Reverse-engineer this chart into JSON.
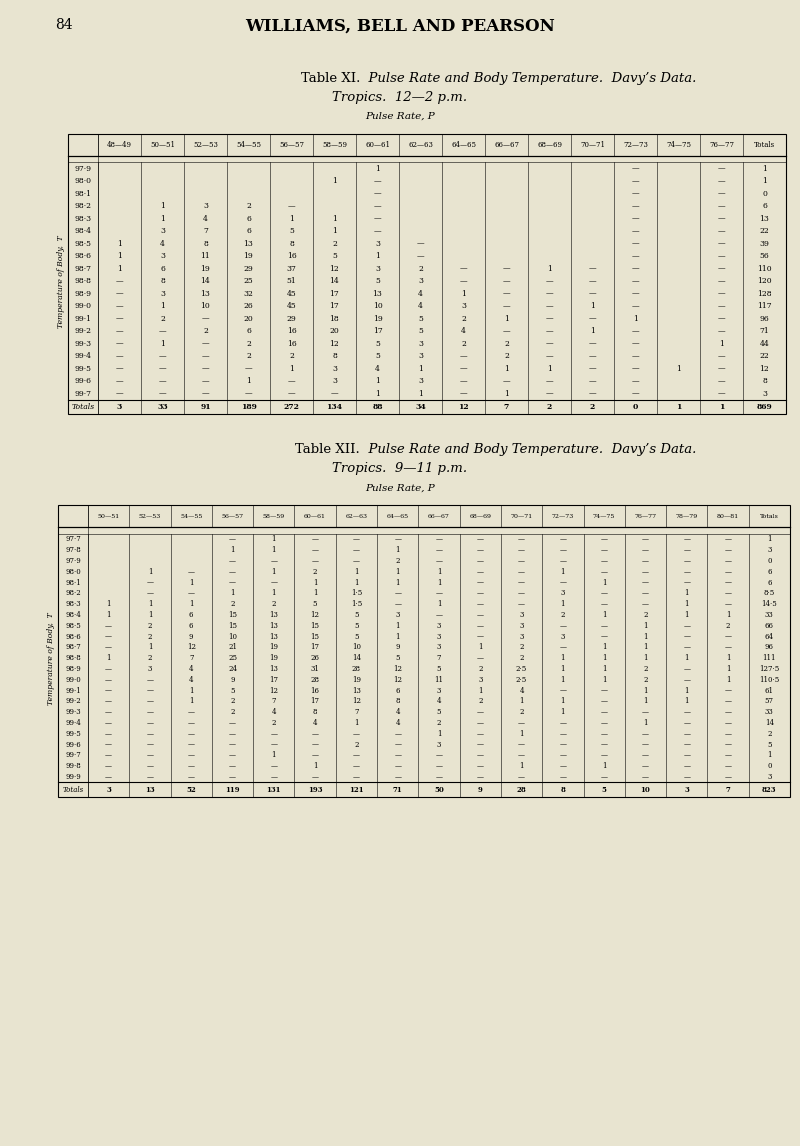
{
  "page_number": "84",
  "page_header": "WILLIAMS, BELL AND PEARSON",
  "bg_color": "#e8e4d0",
  "table1": {
    "title_line1_normal": "Table XI.",
    "title_line1_italic": "  Pulse Rate and Body Temperature.  Davy’s Data.",
    "title_line2_italic": "Tropics.  12—2 p.m.",
    "pulse_label": "Pulse Rate, P",
    "col_headers": [
      "48—49",
      "50—51",
      "52—53",
      "54—55",
      "56—57",
      "58—59",
      "60—61",
      "62—63",
      "64—65",
      "66—67",
      "68—69",
      "70—71",
      "72—73",
      "74—75",
      "76—77",
      "Totals"
    ],
    "row_labels": [
      "97·9",
      "98·0",
      "98·1",
      "98·2",
      "98·3",
      "98·4",
      "98·5",
      "98·6",
      "98·7",
      "98·8",
      "98·9",
      "99·0",
      "99·1",
      "99·2",
      "99·3",
      "99·4",
      "99·5",
      "99·6",
      "99·7"
    ],
    "data": [
      [
        " ",
        " ",
        " ",
        " ",
        " ",
        " ",
        "1",
        " ",
        " ",
        " ",
        " ",
        " ",
        "—",
        " ",
        "—",
        "1"
      ],
      [
        " ",
        " ",
        " ",
        " ",
        " ",
        "1",
        "—",
        " ",
        " ",
        " ",
        " ",
        " ",
        "—",
        " ",
        "—",
        "1"
      ],
      [
        " ",
        " ",
        " ",
        " ",
        " ",
        " ",
        "—",
        " ",
        " ",
        " ",
        " ",
        " ",
        "—",
        " ",
        "—",
        "0"
      ],
      [
        " ",
        "1",
        "3",
        "2",
        "—",
        " ",
        "—",
        " ",
        " ",
        " ",
        " ",
        " ",
        "—",
        " ",
        "—",
        "6"
      ],
      [
        " ",
        "1",
        "4",
        "6",
        "1",
        "1",
        "—",
        " ",
        " ",
        " ",
        " ",
        " ",
        "—",
        " ",
        "—",
        "13"
      ],
      [
        " ",
        "3",
        "7",
        "6",
        "5",
        "1",
        "—",
        " ",
        " ",
        " ",
        " ",
        " ",
        "—",
        " ",
        "—",
        "22"
      ],
      [
        "1",
        "4",
        "8",
        "13",
        "8",
        "2",
        "3",
        "—",
        " ",
        " ",
        " ",
        " ",
        "—",
        " ",
        "—",
        "39"
      ],
      [
        "1",
        "3",
        "11",
        "19",
        "16",
        "5",
        "1",
        "—",
        " ",
        " ",
        " ",
        " ",
        "—",
        " ",
        "—",
        "56"
      ],
      [
        "1",
        "6",
        "19",
        "29",
        "37",
        "12",
        "3",
        "2",
        "—",
        "—",
        "1",
        "—",
        "—",
        " ",
        "—",
        "110"
      ],
      [
        "—",
        "8",
        "14",
        "25",
        "51",
        "14",
        "5",
        "3",
        "—",
        "—",
        "—",
        "—",
        "—",
        " ",
        "—",
        "120"
      ],
      [
        "—",
        "3",
        "13",
        "32",
        "45",
        "17",
        "13",
        "4",
        "1",
        "—",
        "—",
        "—",
        "—",
        " ",
        "—",
        "128"
      ],
      [
        "—",
        "1",
        "10",
        "26",
        "45",
        "17",
        "10",
        "4",
        "3",
        "—",
        "—",
        "1",
        "—",
        " ",
        "—",
        "117"
      ],
      [
        "—",
        "2",
        "—",
        "20",
        "29",
        "18",
        "19",
        "5",
        "2",
        "1",
        "—",
        "—",
        "1",
        " ",
        "—",
        "96"
      ],
      [
        "—",
        "—",
        "2",
        "6",
        "16",
        "20",
        "17",
        "5",
        "4",
        "—",
        "—",
        "1",
        "—",
        " ",
        "—",
        "71"
      ],
      [
        "—",
        "1",
        "—",
        "2",
        "16",
        "12",
        "5",
        "3",
        "2",
        "2",
        "—",
        "—",
        "—",
        " ",
        "1",
        "44"
      ],
      [
        "—",
        "—",
        "—",
        "2",
        "2",
        "8",
        "5",
        "3",
        "—",
        "2",
        "—",
        "—",
        "—",
        " ",
        "—",
        "22"
      ],
      [
        "—",
        "—",
        "—",
        "—",
        "1",
        "3",
        "4",
        "1",
        "—",
        "1",
        "1",
        "—",
        "—",
        "1",
        "—",
        "12"
      ],
      [
        "—",
        "—",
        "—",
        "1",
        "—",
        "3",
        "1",
        "3",
        "—",
        "—",
        "—",
        "—",
        "—",
        " ",
        "—",
        "8"
      ],
      [
        "—",
        "—",
        "—",
        "—",
        "—",
        "—",
        "1",
        "1",
        "—",
        "1",
        "—",
        "—",
        "—",
        " ",
        "—",
        "3"
      ]
    ],
    "totals_row": [
      "3",
      "33",
      "91",
      "189",
      "272",
      "134",
      "88",
      "34",
      "12",
      "7",
      "2",
      "2",
      "0",
      "1",
      "1",
      "869"
    ]
  },
  "table2": {
    "title_line1_normal": "Table XII.",
    "title_line1_italic": "  Pulse Rate and Body Temperature.  Davy’s Data.",
    "title_line2_italic": "Tropics.  9—11 p.m.",
    "pulse_label": "Pulse Rate, P",
    "col_headers": [
      "50—51",
      "52—53",
      "54—55",
      "56—57",
      "58—59",
      "60—61",
      "62—63",
      "64—65",
      "66—67",
      "68—69",
      "70—71",
      "72—73",
      "74—75",
      "76—77",
      "78—79",
      "80—81",
      "Totals"
    ],
    "row_labels": [
      "97·7",
      "97·8",
      "97·9",
      "98·0",
      "98·1",
      "98·2",
      "98·3",
      "98·4",
      "98·5",
      "98·6",
      "98·7",
      "98·8",
      "98·9",
      "99·0",
      "99·1",
      "99·2",
      "99·3",
      "99·4",
      "99·5",
      "99·6",
      "99·7",
      "99·8",
      "99·9"
    ],
    "data": [
      [
        " ",
        " ",
        " ",
        "—",
        "1",
        "—",
        "—",
        "—",
        "—",
        "—",
        "—",
        "—",
        "—",
        "—",
        "—",
        "—",
        "1"
      ],
      [
        " ",
        " ",
        " ",
        "1",
        "1",
        "—",
        "—",
        "1",
        "—",
        "—",
        "—",
        "—",
        "—",
        "—",
        "—",
        "—",
        "3"
      ],
      [
        " ",
        " ",
        " ",
        "—",
        "—",
        "—",
        "—",
        "2",
        "—",
        "—",
        "—",
        "—",
        "—",
        "—",
        "—",
        "—",
        "0"
      ],
      [
        " ",
        "1",
        "—",
        "—",
        "1",
        "2",
        "1",
        "1",
        "1",
        "—",
        "—",
        "1",
        "—",
        "—",
        "—",
        "—",
        "6"
      ],
      [
        " ",
        "—",
        "1",
        "—",
        "—",
        "1",
        "1",
        "1",
        "1",
        "—",
        "—",
        "—",
        "1",
        "—",
        "—",
        "—",
        "6"
      ],
      [
        " ",
        "—",
        "—",
        "1",
        "1",
        "1",
        "1·5",
        "—",
        "—",
        "—",
        "—",
        "3",
        "—",
        "—",
        "1",
        "—",
        "8·5"
      ],
      [
        "1",
        "1",
        "1",
        "2",
        "2",
        "5",
        "1·5",
        "—",
        "1",
        "—",
        "—",
        "1",
        "—",
        "—",
        "1",
        "—",
        "14·5"
      ],
      [
        "1",
        "1",
        "6",
        "15",
        "13",
        "12",
        "5",
        "3",
        "—",
        "—",
        "3",
        "2",
        "1",
        "2",
        "1",
        "1",
        "33"
      ],
      [
        "—",
        "2",
        "6",
        "15",
        "13",
        "15",
        "5",
        "1",
        "3",
        "—",
        "3",
        "—",
        "—",
        "1",
        "—",
        "2",
        "66"
      ],
      [
        "—",
        "2",
        "9",
        "10",
        "13",
        "15",
        "5",
        "1",
        "3",
        "—",
        "3",
        "3",
        "—",
        "1",
        "—",
        "—",
        "64"
      ],
      [
        "—",
        "1",
        "12",
        "21",
        "19",
        "17",
        "10",
        "9",
        "3",
        "1",
        "2",
        "—",
        "1",
        "1",
        "—",
        "—",
        "96"
      ],
      [
        "1",
        "2",
        "7",
        "25",
        "19",
        "26",
        "14",
        "5",
        "7",
        "—",
        "2",
        "1",
        "1",
        "1",
        "1",
        "1",
        "111"
      ],
      [
        "—",
        "3",
        "4",
        "24",
        "13",
        "31",
        "28",
        "12",
        "5",
        "2",
        "2·5",
        "1",
        "1",
        "2",
        "—",
        "1",
        "127·5"
      ],
      [
        "—",
        "—",
        "4",
        "9",
        "17",
        "28",
        "19",
        "12",
        "11",
        "3",
        "2·5",
        "1",
        "1",
        "2",
        "—",
        "1",
        "110·5"
      ],
      [
        "—",
        "—",
        "1",
        "5",
        "12",
        "16",
        "13",
        "6",
        "3",
        "1",
        "4",
        "—",
        "—",
        "1",
        "1",
        "—",
        "61"
      ],
      [
        "—",
        "—",
        "1",
        "2",
        "7",
        "17",
        "12",
        "8",
        "4",
        "2",
        "1",
        "1",
        "—",
        "1",
        "1",
        "—",
        "57"
      ],
      [
        "—",
        "—",
        "—",
        "2",
        "4",
        "8",
        "7",
        "4",
        "5",
        "—",
        "2",
        "1",
        "—",
        "—",
        "—",
        "—",
        "33"
      ],
      [
        "—",
        "—",
        "—",
        "—",
        "2",
        "4",
        "1",
        "4",
        "2",
        "—",
        "—",
        "—",
        "—",
        "1",
        "—",
        "—",
        "14"
      ],
      [
        "—",
        "—",
        "—",
        "—",
        "—",
        "—",
        "—",
        "—",
        "1",
        "—",
        "1",
        "—",
        "—",
        "—",
        "—",
        "—",
        "2"
      ],
      [
        "—",
        "—",
        "—",
        "—",
        "—",
        "—",
        "2",
        "—",
        "3",
        "—",
        "—",
        "—",
        "—",
        "—",
        "—",
        "—",
        "5"
      ],
      [
        "—",
        "—",
        "—",
        "—",
        "1",
        "—",
        "—",
        "—",
        "—",
        "—",
        "—",
        "—",
        "—",
        "—",
        "—",
        "—",
        "1"
      ],
      [
        "—",
        "—",
        "—",
        "—",
        "—",
        "1",
        "—",
        "—",
        "—",
        "—",
        "1",
        "—",
        "1",
        "—",
        "—",
        "—",
        "0"
      ],
      [
        "—",
        "—",
        "—",
        "—",
        "—",
        "—",
        "—",
        "—",
        "—",
        "—",
        "—",
        "—",
        "—",
        "—",
        "—",
        "—",
        "3"
      ]
    ],
    "totals_row": [
      "3",
      "13",
      "52",
      "119",
      "131",
      "193",
      "121",
      "71",
      "50",
      "9",
      "28",
      "8",
      "5",
      "10",
      "3",
      "7",
      "823"
    ]
  }
}
